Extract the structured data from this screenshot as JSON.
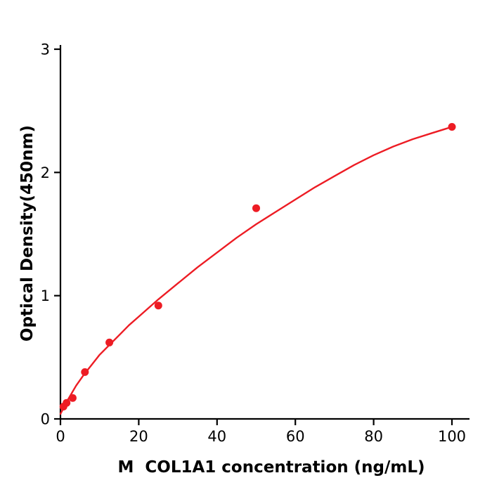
{
  "chart_data": {
    "type": "scatter",
    "title": "",
    "xlabel": "M  COL1A1 concentration (ng/mL)",
    "ylabel": "Optical Density(450nm)",
    "xlim": [
      0,
      104
    ],
    "ylim": [
      0,
      3
    ],
    "x_ticks": [
      0,
      20,
      40,
      60,
      80,
      100
    ],
    "y_ticks": [
      0,
      1,
      2,
      3
    ],
    "grid": false,
    "legend": "none",
    "point_color": "#ed1c24",
    "curve_color": "#ed1c24",
    "axis_color": "#000000",
    "points": [
      [
        0.78,
        0.1
      ],
      [
        1.56,
        0.13
      ],
      [
        3.12,
        0.17
      ],
      [
        6.25,
        0.38
      ],
      [
        12.5,
        0.62
      ],
      [
        25,
        0.92
      ],
      [
        50,
        1.71
      ],
      [
        100,
        2.37
      ]
    ],
    "fit_curve": [
      [
        0,
        0.04
      ],
      [
        2,
        0.16
      ],
      [
        4,
        0.27
      ],
      [
        6,
        0.36
      ],
      [
        8,
        0.44
      ],
      [
        10,
        0.52
      ],
      [
        12.5,
        0.6
      ],
      [
        15,
        0.68
      ],
      [
        17.5,
        0.76
      ],
      [
        20,
        0.83
      ],
      [
        25,
        0.97
      ],
      [
        30,
        1.1
      ],
      [
        35,
        1.23
      ],
      [
        40,
        1.35
      ],
      [
        45,
        1.47
      ],
      [
        50,
        1.58
      ],
      [
        55,
        1.68
      ],
      [
        60,
        1.78
      ],
      [
        65,
        1.88
      ],
      [
        70,
        1.97
      ],
      [
        75,
        2.06
      ],
      [
        80,
        2.14
      ],
      [
        85,
        2.21
      ],
      [
        90,
        2.27
      ],
      [
        95,
        2.32
      ],
      [
        100,
        2.37
      ]
    ]
  }
}
